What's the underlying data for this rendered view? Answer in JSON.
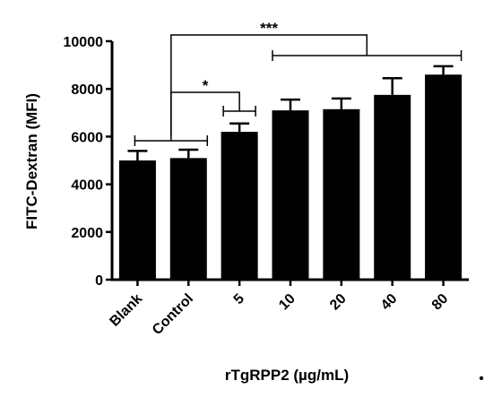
{
  "chart_data": {
    "type": "bar",
    "title": "",
    "xlabel": "rTgRPP2 (µg/mL)",
    "ylabel": "FITC-Dextran (MFI)",
    "categories": [
      "Blank",
      "Control",
      "5",
      "10",
      "20",
      "40",
      "80"
    ],
    "values": [
      5000,
      5100,
      6200,
      7100,
      7150,
      7750,
      8600
    ],
    "errors": [
      400,
      350,
      350,
      450,
      450,
      700,
      350
    ],
    "ylim": [
      0,
      10000
    ],
    "yticks": [
      0,
      2000,
      4000,
      6000,
      8000,
      10000
    ],
    "ytick_labels": [
      "0",
      "2000",
      "4000",
      "6000",
      "8000",
      "10000"
    ],
    "grid": false,
    "bar_color": "#000000",
    "significance": [
      {
        "label": "*",
        "group_a": [
          "Blank",
          "Control"
        ],
        "group_b": [
          "5"
        ]
      },
      {
        "label": "***",
        "group_a": [
          "Blank",
          "Control"
        ],
        "group_b": [
          "10",
          "20",
          "40",
          "80"
        ]
      }
    ]
  },
  "footer": {
    "dot": "•"
  }
}
